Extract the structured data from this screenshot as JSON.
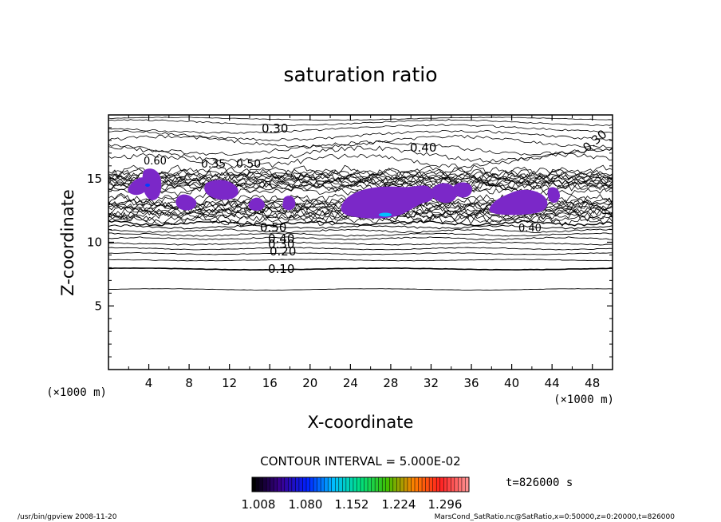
{
  "chart_data": {
    "type": "contour",
    "title": "saturation ratio",
    "xlabel": "X-coordinate",
    "ylabel": "Z-coordinate",
    "x_unit": "(×1000 m)",
    "z_unit": "(×1000 m)",
    "xlim": [
      0,
      50
    ],
    "ylim": [
      0,
      20
    ],
    "x_ticks": [
      "4",
      "8",
      "12",
      "16",
      "20",
      "24",
      "28",
      "32",
      "36",
      "40",
      "44",
      "48"
    ],
    "y_ticks": [
      "5",
      "10",
      "15"
    ],
    "contour_interval_label": "CONTOUR INTERVAL = 5.000E-02",
    "contour_labels": [
      "0.30",
      "0.40",
      "0.30",
      "0.35",
      "0.50",
      "0.60",
      "0.50",
      "0.40",
      "0.30",
      "0.20",
      "0.10",
      "0.40"
    ],
    "colorbar": {
      "tick_labels": [
        "1.008",
        "1.080",
        "1.152",
        "1.224",
        "1.296"
      ],
      "colors": [
        "#000000",
        "#3a0090",
        "#0020ff",
        "#00c0ff",
        "#00e080",
        "#40c000",
        "#ff8000",
        "#ff2020",
        "#ff9090"
      ]
    },
    "time_label": "t=826000 s",
    "fill_color": "#7b28c8"
  },
  "footer": {
    "left": "/usr/bin/gpview   2008-11-20",
    "right": "MarsCond_SatRatio.nc@SatRatio,x=0:50000,z=0:20000,t=826000"
  }
}
